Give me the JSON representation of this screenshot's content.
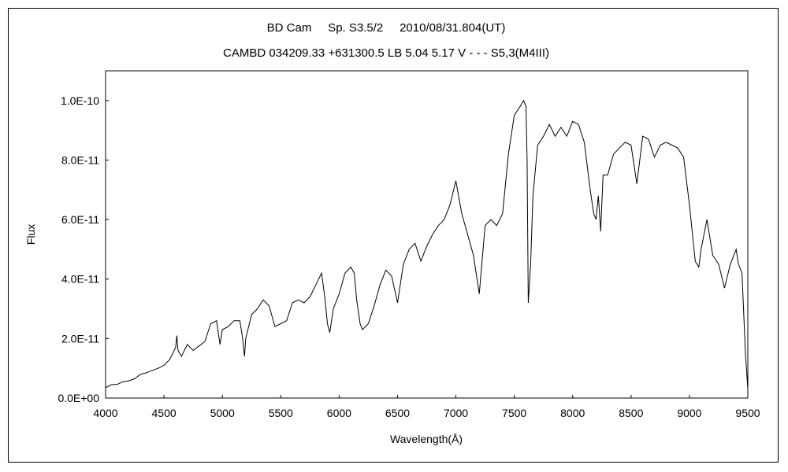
{
  "chart_data": {
    "type": "line",
    "title": "BD Cam     Sp. S3.5/2     2010/08/31.804(UT)",
    "subtitle": "CAMBD 034209.33 +631300.5 LB 5.04 5.17 V - - - S5,3(M4III)",
    "xlabel": "Wavelength(Å)",
    "ylabel": "Flux",
    "xlim": [
      4000,
      9500
    ],
    "ylim": [
      0,
      1.1e-10
    ],
    "x_ticks": [
      4000,
      4500,
      5000,
      5500,
      6000,
      6500,
      7000,
      7500,
      8000,
      8500,
      9000,
      9500
    ],
    "x_tick_labels": [
      "4000",
      "4500",
      "5000",
      "5500",
      "6000",
      "6500",
      "7000",
      "7500",
      "8000",
      "8500",
      "9000",
      "9500"
    ],
    "y_ticks": [
      0,
      2e-11,
      4e-11,
      6e-11,
      8e-11,
      1e-10
    ],
    "y_tick_labels": [
      "0.0E+00",
      "2.0E-11",
      "4.0E-11",
      "6.0E-11",
      "8.0E-11",
      "1.0E-10"
    ],
    "grid": false,
    "legend": "none",
    "series": [
      {
        "color": "#000000",
        "x": [
          4000,
          4050,
          4100,
          4150,
          4200,
          4250,
          4300,
          4350,
          4400,
          4450,
          4500,
          4550,
          4600,
          4610,
          4620,
          4650,
          4700,
          4750,
          4800,
          4850,
          4900,
          4950,
          4980,
          5000,
          5050,
          5100,
          5150,
          5170,
          5190,
          5200,
          5250,
          5300,
          5350,
          5400,
          5450,
          5500,
          5550,
          5600,
          5650,
          5700,
          5750,
          5800,
          5850,
          5880,
          5900,
          5920,
          5950,
          6000,
          6050,
          6100,
          6130,
          6150,
          6180,
          6200,
          6250,
          6300,
          6350,
          6400,
          6450,
          6500,
          6550,
          6600,
          6650,
          6700,
          6750,
          6800,
          6850,
          6900,
          6950,
          7000,
          7050,
          7100,
          7150,
          7200,
          7250,
          7300,
          7350,
          7400,
          7450,
          7500,
          7550,
          7580,
          7600,
          7610,
          7620,
          7640,
          7660,
          7700,
          7750,
          7800,
          7850,
          7900,
          7950,
          8000,
          8050,
          8100,
          8150,
          8180,
          8200,
          8220,
          8240,
          8260,
          8300,
          8350,
          8400,
          8450,
          8500,
          8550,
          8600,
          8650,
          8700,
          8750,
          8800,
          8850,
          8900,
          8950,
          9000,
          9050,
          9080,
          9100,
          9150,
          9200,
          9250,
          9300,
          9350,
          9400,
          9420,
          9450,
          9480,
          9500
        ],
        "y": [
          3.5e-12,
          4.5e-12,
          4.6e-12,
          5.5e-12,
          5.8e-12,
          6.5e-12,
          8e-12,
          8.5e-12,
          9.3e-12,
          1e-11,
          1.1e-11,
          1.3e-11,
          1.7e-11,
          2.1e-11,
          1.6e-11,
          1.4e-11,
          1.8e-11,
          1.6e-11,
          1.75e-11,
          1.9e-11,
          2.5e-11,
          2.6e-11,
          1.8e-11,
          2.3e-11,
          2.4e-11,
          2.6e-11,
          2.6e-11,
          2.1e-11,
          1.4e-11,
          2e-11,
          2.8e-11,
          3e-11,
          3.3e-11,
          3.1e-11,
          2.4e-11,
          2.5e-11,
          2.6e-11,
          3.2e-11,
          3.3e-11,
          3.2e-11,
          3.4e-11,
          3.8e-11,
          4.2e-11,
          3.3e-11,
          2.5e-11,
          2.2e-11,
          3e-11,
          3.5e-11,
          4.2e-11,
          4.4e-11,
          4.2e-11,
          3.3e-11,
          2.5e-11,
          2.3e-11,
          2.5e-11,
          3.1e-11,
          3.8e-11,
          4.3e-11,
          4.1e-11,
          3.2e-11,
          4.5e-11,
          5e-11,
          5.2e-11,
          4.6e-11,
          5.1e-11,
          5.5e-11,
          5.8e-11,
          6e-11,
          6.5e-11,
          7.3e-11,
          6.2e-11,
          5.5e-11,
          4.8e-11,
          3.5e-11,
          5.8e-11,
          6e-11,
          5.8e-11,
          6.2e-11,
          8.2e-11,
          9.5e-11,
          9.8e-11,
          1e-10,
          9.8e-11,
          8e-11,
          3.2e-11,
          4.5e-11,
          6.8e-11,
          8.5e-11,
          8.8e-11,
          9.2e-11,
          8.8e-11,
          9.1e-11,
          8.8e-11,
          9.3e-11,
          9.2e-11,
          8.6e-11,
          7e-11,
          6.2e-11,
          6e-11,
          6.8e-11,
          5.6e-11,
          7.5e-11,
          7.5e-11,
          8.2e-11,
          8.4e-11,
          8.6e-11,
          8.5e-11,
          7.2e-11,
          8.8e-11,
          8.7e-11,
          8.1e-11,
          8.5e-11,
          8.6e-11,
          8.5e-11,
          8.4e-11,
          8.1e-11,
          6.5e-11,
          4.6e-11,
          4.4e-11,
          5e-11,
          6e-11,
          4.8e-11,
          4.5e-11,
          3.7e-11,
          4.5e-11,
          5e-11,
          4.5e-11,
          4.2e-11,
          1.5e-11,
          3e-12
        ]
      }
    ]
  }
}
